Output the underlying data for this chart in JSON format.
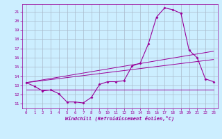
{
  "xlabel": "Windchill (Refroidissement éolien,°C)",
  "background_color": "#cceeff",
  "grid_color": "#aabbcc",
  "line_color": "#990099",
  "xlim": [
    -0.5,
    23.5
  ],
  "ylim": [
    10.5,
    21.8
  ],
  "yticks": [
    11,
    12,
    13,
    14,
    15,
    16,
    17,
    18,
    19,
    20,
    21
  ],
  "xticks": [
    0,
    1,
    2,
    3,
    4,
    5,
    6,
    7,
    8,
    9,
    10,
    11,
    12,
    13,
    14,
    15,
    16,
    17,
    18,
    19,
    20,
    21,
    22,
    23
  ],
  "main_line": {
    "x": [
      0,
      1,
      2,
      3,
      4,
      5,
      6,
      7,
      8,
      9,
      10,
      11,
      12,
      13,
      14,
      15,
      16,
      17,
      18,
      19,
      20,
      21,
      22,
      23
    ],
    "y": [
      13.3,
      12.9,
      12.4,
      12.5,
      12.1,
      11.2,
      11.2,
      11.1,
      11.7,
      13.1,
      13.4,
      13.4,
      13.5,
      15.1,
      15.4,
      17.5,
      20.4,
      21.4,
      21.2,
      20.8,
      16.8,
      16.0,
      13.7,
      13.4
    ]
  },
  "linear_line1": {
    "x": [
      0,
      23
    ],
    "y": [
      13.3,
      16.7
    ]
  },
  "linear_line2": {
    "x": [
      0,
      23
    ],
    "y": [
      13.3,
      15.8
    ]
  },
  "linear_line3": {
    "x": [
      0,
      23
    ],
    "y": [
      12.5,
      12.5
    ]
  }
}
